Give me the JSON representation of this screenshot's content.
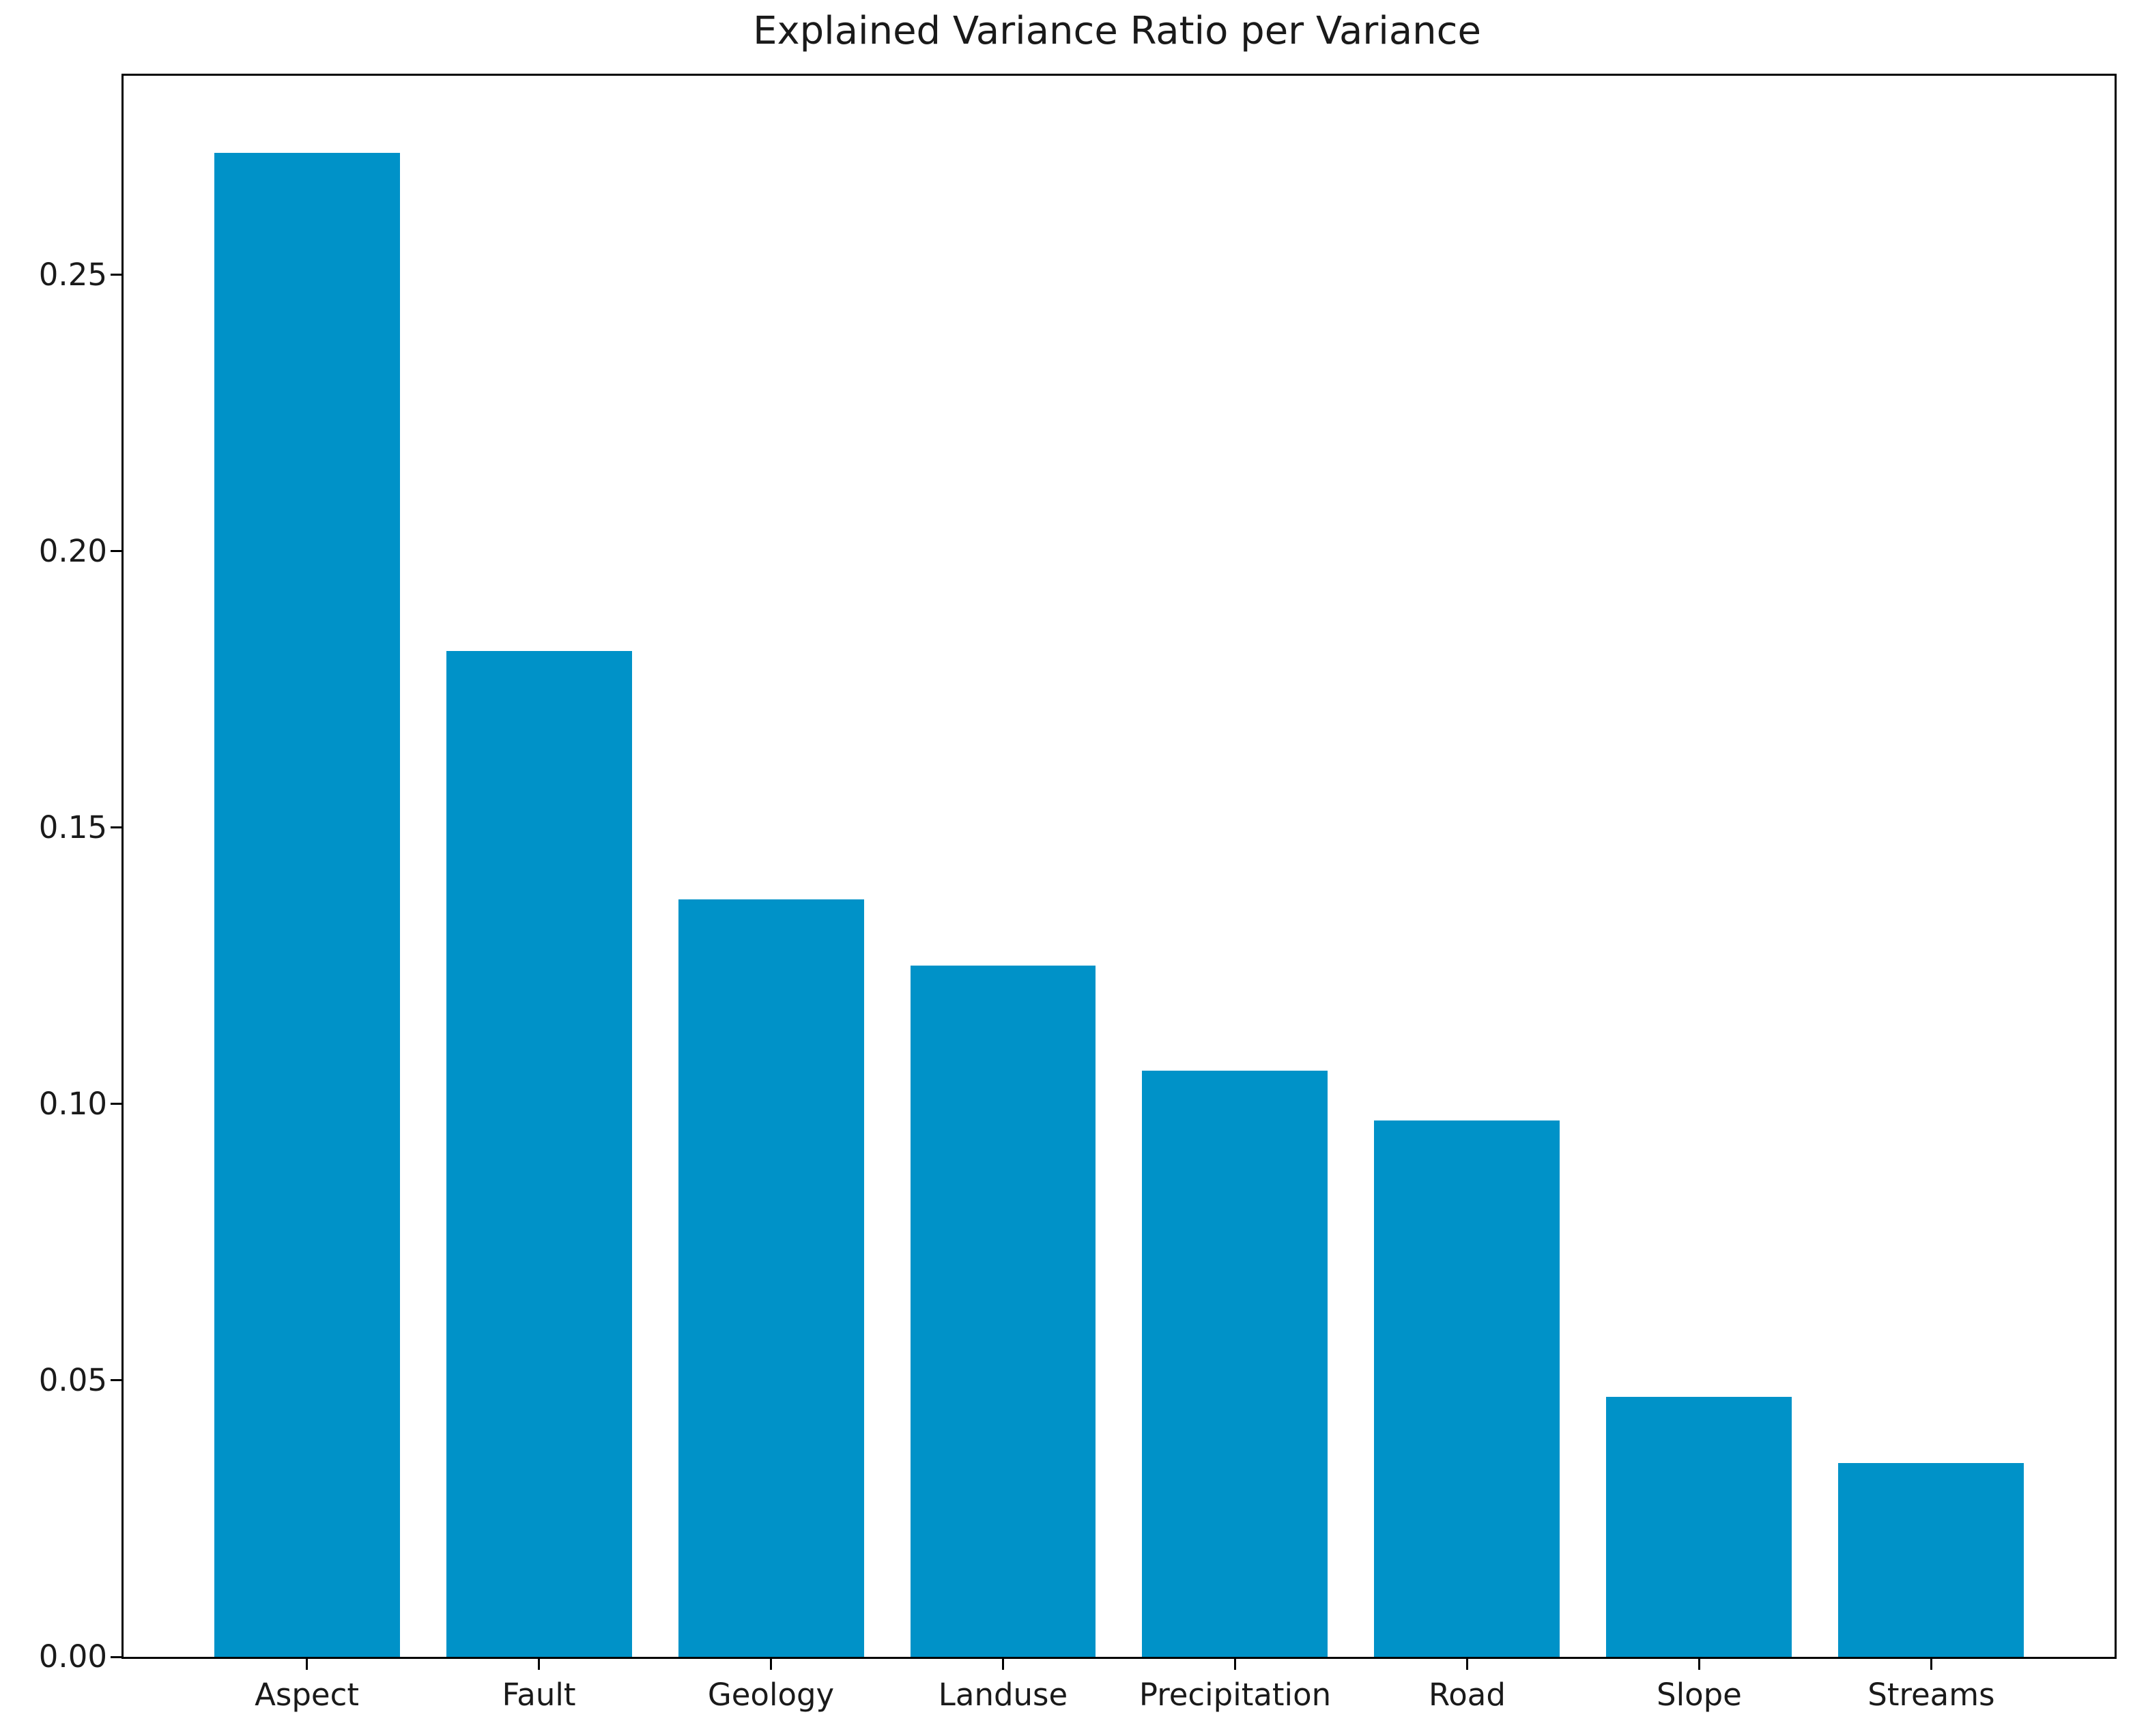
{
  "figure": {
    "background": "#ffffff",
    "text_color": "#1a1a1a",
    "axis_color": "#000000"
  },
  "chart_data": {
    "type": "bar",
    "title": "Explained Variance Ratio per Variance",
    "categories": [
      "Aspect",
      "Fault",
      "Geology",
      "Landuse",
      "Precipitation",
      "Road",
      "Slope",
      "Streams"
    ],
    "values": [
      0.272,
      0.182,
      0.137,
      0.125,
      0.106,
      0.097,
      0.047,
      0.035
    ],
    "bar_color": "#0092c8",
    "bar_width_fraction": 0.8,
    "x_edge_pad_units": 0.79,
    "xlabel": "",
    "ylabel": "",
    "ylim": [
      0,
      0.286
    ],
    "yticks": [
      0.0,
      0.05,
      0.1,
      0.15,
      0.2,
      0.25
    ],
    "ytick_labels": [
      "0.00",
      "0.05",
      "0.10",
      "0.15",
      "0.20",
      "0.25"
    ],
    "grid": false,
    "legend": "none",
    "frame_box": true
  }
}
